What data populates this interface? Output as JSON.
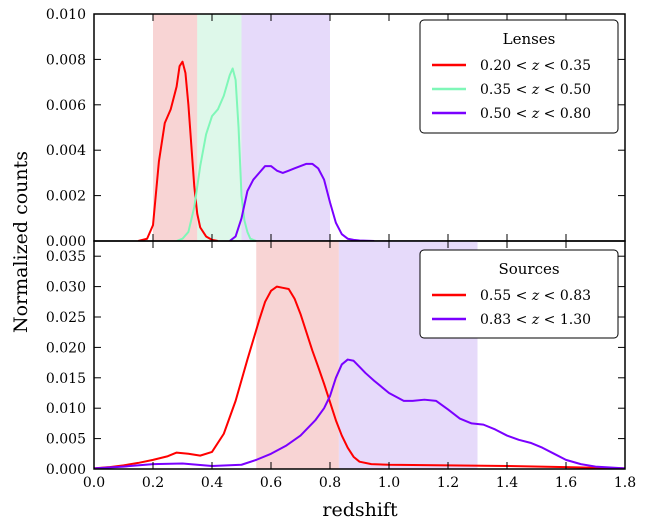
{
  "chart_data": [
    {
      "panel": "top",
      "type": "area",
      "xlabel": "",
      "ylabel": "Normalized counts",
      "xlim": [
        0.0,
        1.8
      ],
      "ylim": [
        0.0,
        0.01
      ],
      "yticks": [
        0.0,
        0.002,
        0.004,
        0.006,
        0.008,
        0.01
      ],
      "ytick_labels": [
        "0.000",
        "0.002",
        "0.004",
        "0.006",
        "0.008",
        "0.010"
      ],
      "grid": false,
      "legend": {
        "title": "Lenses",
        "placement": "top-right",
        "entries": [
          "0.20 < z < 0.35",
          "0.35 < z < 0.50",
          "0.50 < z < 0.80"
        ]
      },
      "shaded_bins": [
        {
          "x0": 0.2,
          "x1": 0.35,
          "color": "#f4b8b8"
        },
        {
          "x0": 0.35,
          "x1": 0.5,
          "color": "#c8f4dc"
        },
        {
          "x0": 0.5,
          "x1": 0.8,
          "color": "#d6c2f7"
        }
      ],
      "series": [
        {
          "name": "0.20 < z < 0.35",
          "color": "#ff0000",
          "x": [
            0.15,
            0.18,
            0.2,
            0.22,
            0.24,
            0.26,
            0.28,
            0.29,
            0.3,
            0.31,
            0.32,
            0.33,
            0.34,
            0.35,
            0.36,
            0.38,
            0.4,
            0.42
          ],
          "y": [
            0.0,
            0.0001,
            0.0007,
            0.0035,
            0.0052,
            0.0058,
            0.0068,
            0.0077,
            0.0079,
            0.0074,
            0.006,
            0.0042,
            0.0024,
            0.0012,
            0.0006,
            0.0002,
            5e-05,
            0.0
          ]
        },
        {
          "name": "0.35 < z < 0.50",
          "color": "#7ff7b8",
          "x": [
            0.28,
            0.3,
            0.32,
            0.34,
            0.36,
            0.38,
            0.4,
            0.42,
            0.44,
            0.46,
            0.47,
            0.48,
            0.49,
            0.5,
            0.51,
            0.52,
            0.53,
            0.55
          ],
          "y": [
            0.0,
            0.0001,
            0.0004,
            0.0015,
            0.0033,
            0.0047,
            0.0055,
            0.0058,
            0.0064,
            0.0073,
            0.0076,
            0.0071,
            0.005,
            0.002,
            0.0009,
            0.0004,
            0.0001,
            0.0
          ]
        },
        {
          "name": "0.50 < z < 0.80",
          "color": "#7a00ff",
          "x": [
            0.46,
            0.48,
            0.5,
            0.52,
            0.54,
            0.56,
            0.58,
            0.6,
            0.62,
            0.64,
            0.66,
            0.68,
            0.7,
            0.72,
            0.74,
            0.76,
            0.78,
            0.8,
            0.82,
            0.84,
            0.86,
            0.88,
            0.9,
            0.95
          ],
          "y": [
            0.0,
            0.0002,
            0.001,
            0.0022,
            0.0027,
            0.003,
            0.0033,
            0.0033,
            0.0031,
            0.003,
            0.0031,
            0.0032,
            0.0033,
            0.0034,
            0.0034,
            0.0032,
            0.0027,
            0.0017,
            0.0008,
            0.0003,
            0.0001,
            5e-05,
            2e-05,
            0.0
          ]
        }
      ]
    },
    {
      "panel": "bottom",
      "type": "area",
      "xlabel": "redshift",
      "ylabel": "Normalized counts",
      "xlim": [
        0.0,
        1.8
      ],
      "ylim": [
        0.0,
        0.0375
      ],
      "xticks": [
        0.0,
        0.2,
        0.4,
        0.6,
        0.8,
        1.0,
        1.2,
        1.4,
        1.6,
        1.8
      ],
      "xtick_labels": [
        "0.0",
        "0.2",
        "0.4",
        "0.6",
        "0.8",
        "1.0",
        "1.2",
        "1.4",
        "1.6",
        "1.8"
      ],
      "yticks": [
        0.0,
        0.005,
        0.01,
        0.015,
        0.02,
        0.025,
        0.03,
        0.035
      ],
      "ytick_labels": [
        "0.000",
        "0.005",
        "0.010",
        "0.015",
        "0.020",
        "0.025",
        "0.030",
        "0.035"
      ],
      "grid": false,
      "legend": {
        "title": "Sources",
        "placement": "top-right",
        "entries": [
          "0.55 < z < 0.83",
          "0.83 < z < 1.30"
        ]
      },
      "shaded_bins": [
        {
          "x0": 0.55,
          "x1": 0.83,
          "color": "#f4b8b8"
        },
        {
          "x0": 0.83,
          "x1": 1.3,
          "color": "#d6c2f7"
        }
      ],
      "series": [
        {
          "name": "0.55 < z < 0.83",
          "color": "#ff0000",
          "x": [
            0.0,
            0.05,
            0.1,
            0.15,
            0.2,
            0.25,
            0.28,
            0.32,
            0.36,
            0.4,
            0.44,
            0.48,
            0.52,
            0.56,
            0.58,
            0.6,
            0.62,
            0.64,
            0.66,
            0.68,
            0.7,
            0.72,
            0.74,
            0.76,
            0.78,
            0.8,
            0.82,
            0.84,
            0.86,
            0.88,
            0.9,
            0.94,
            1.0,
            1.2,
            1.4,
            1.6,
            1.8
          ],
          "y": [
            0.0001,
            0.0003,
            0.0006,
            0.001,
            0.0015,
            0.0021,
            0.0027,
            0.0025,
            0.0022,
            0.0028,
            0.0058,
            0.0112,
            0.018,
            0.0245,
            0.0275,
            0.0293,
            0.03,
            0.0298,
            0.0296,
            0.028,
            0.0255,
            0.0225,
            0.0195,
            0.0168,
            0.014,
            0.011,
            0.008,
            0.0055,
            0.0035,
            0.002,
            0.0012,
            0.0008,
            0.0007,
            0.0006,
            0.0005,
            0.0003,
            0.0001
          ]
        },
        {
          "name": "0.83 < z < 1.30",
          "color": "#7a00ff",
          "x": [
            0.0,
            0.1,
            0.2,
            0.3,
            0.4,
            0.5,
            0.55,
            0.6,
            0.65,
            0.7,
            0.75,
            0.78,
            0.8,
            0.82,
            0.84,
            0.86,
            0.88,
            0.9,
            0.92,
            0.95,
            1.0,
            1.05,
            1.08,
            1.12,
            1.16,
            1.2,
            1.24,
            1.28,
            1.32,
            1.36,
            1.4,
            1.44,
            1.48,
            1.52,
            1.56,
            1.6,
            1.65,
            1.7,
            1.8
          ],
          "y": [
            0.0001,
            0.0004,
            0.0008,
            0.0009,
            0.0005,
            0.0007,
            0.0015,
            0.0025,
            0.0038,
            0.0055,
            0.008,
            0.01,
            0.012,
            0.015,
            0.0172,
            0.018,
            0.0178,
            0.0168,
            0.0158,
            0.0145,
            0.0125,
            0.0112,
            0.0112,
            0.0114,
            0.0112,
            0.0098,
            0.0083,
            0.0075,
            0.0073,
            0.0065,
            0.0055,
            0.0048,
            0.0043,
            0.0035,
            0.0025,
            0.0015,
            0.0008,
            0.0004,
            0.0001
          ]
        }
      ]
    }
  ]
}
